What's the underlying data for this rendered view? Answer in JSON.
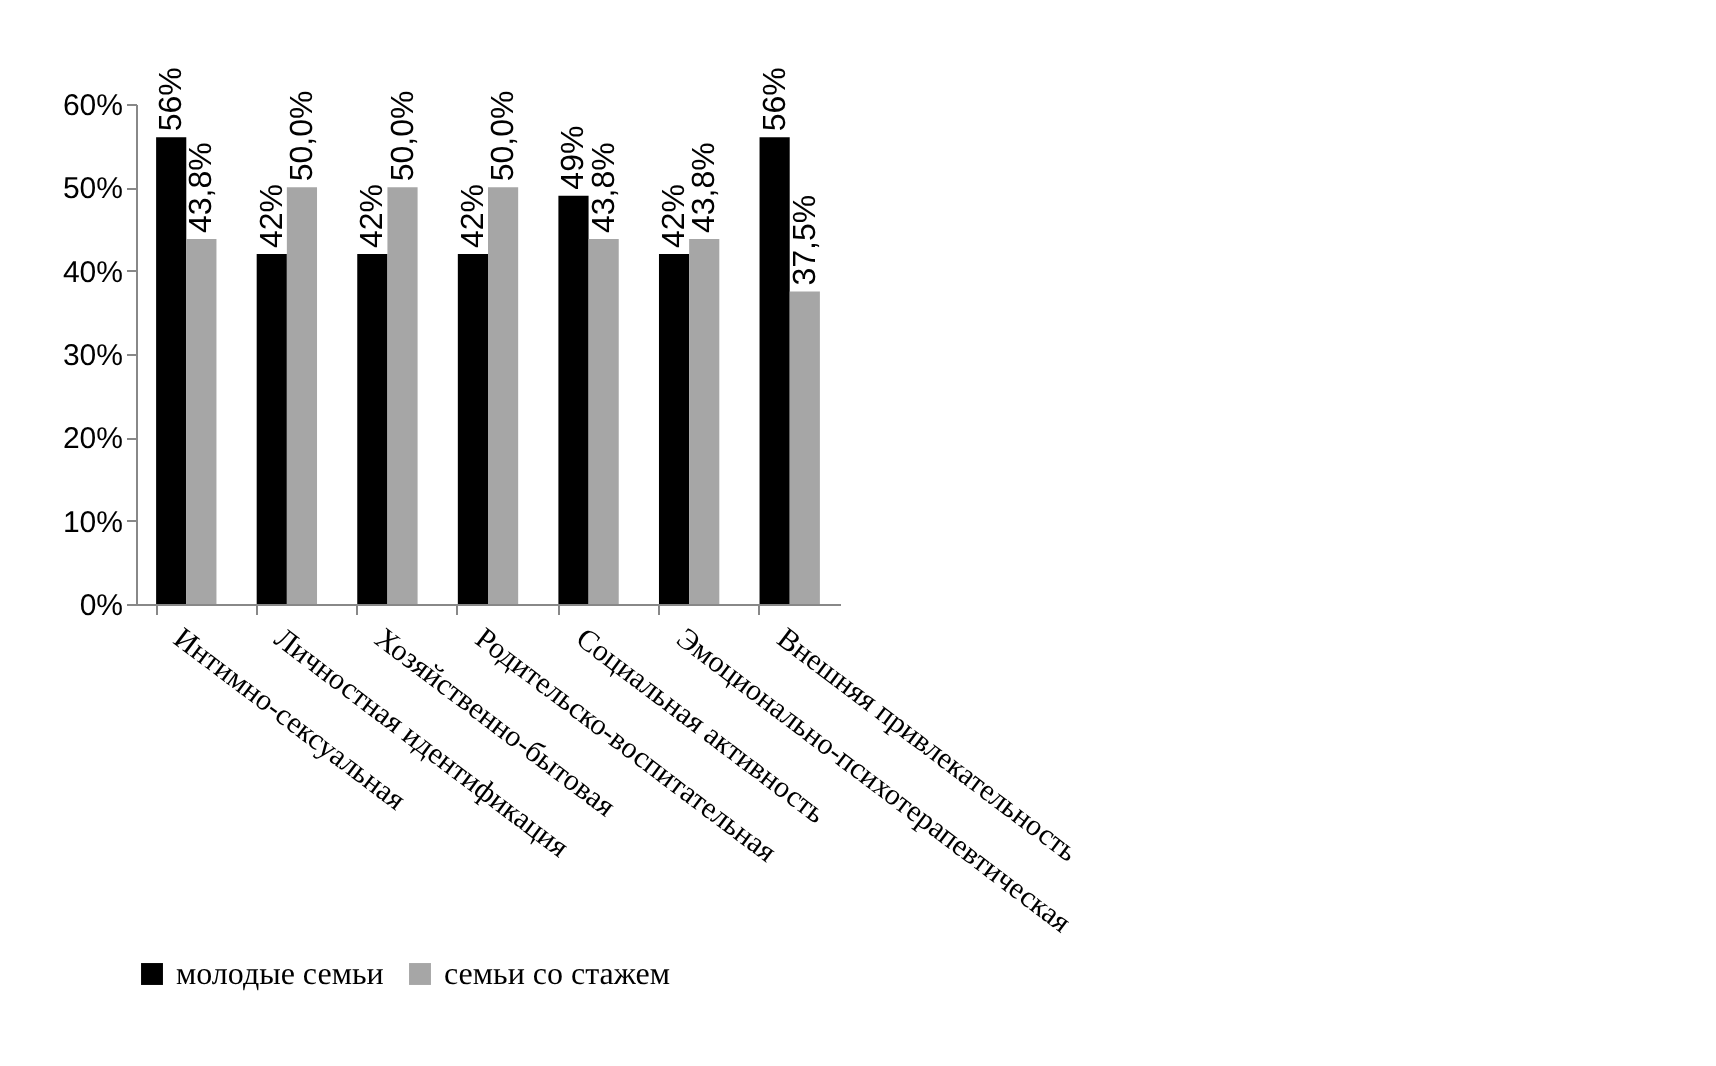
{
  "chart_data": {
    "type": "bar",
    "categories": [
      "Интимно-сексуальная",
      "Личностная идентификация",
      "Хозяйственно-бытовая",
      "Родительско-воспитательная",
      "Социальная активность",
      "Эмоционально-психотерапевтическая",
      "Внешняя привлекательность"
    ],
    "series": [
      {
        "name": "молодые семьи",
        "color": "#000000",
        "values": [
          56,
          42,
          42,
          42,
          49,
          42,
          56
        ],
        "value_labels": [
          "56%",
          "42%",
          "42%",
          "42%",
          "49%",
          "42%",
          "56%"
        ]
      },
      {
        "name": "семьи со стажем",
        "color": "#a6a6a6",
        "values": [
          43.8,
          50.0,
          50.0,
          50.0,
          43.8,
          43.8,
          37.5
        ],
        "value_labels": [
          "43,8%",
          "50,0%",
          "50,0%",
          "50,0%",
          "43,8%",
          "43,8%",
          "37,5%"
        ]
      }
    ],
    "ylim": [
      0,
      60
    ],
    "yticks": [
      {
        "value": 0,
        "label": "0%"
      },
      {
        "value": 10,
        "label": "10%"
      },
      {
        "value": 20,
        "label": "20%"
      },
      {
        "value": 30,
        "label": "30%"
      },
      {
        "value": 40,
        "label": "40%"
      },
      {
        "value": 50,
        "label": "50%"
      },
      {
        "value": 60,
        "label": "60%"
      }
    ],
    "grid": false,
    "legend": "bottom"
  }
}
